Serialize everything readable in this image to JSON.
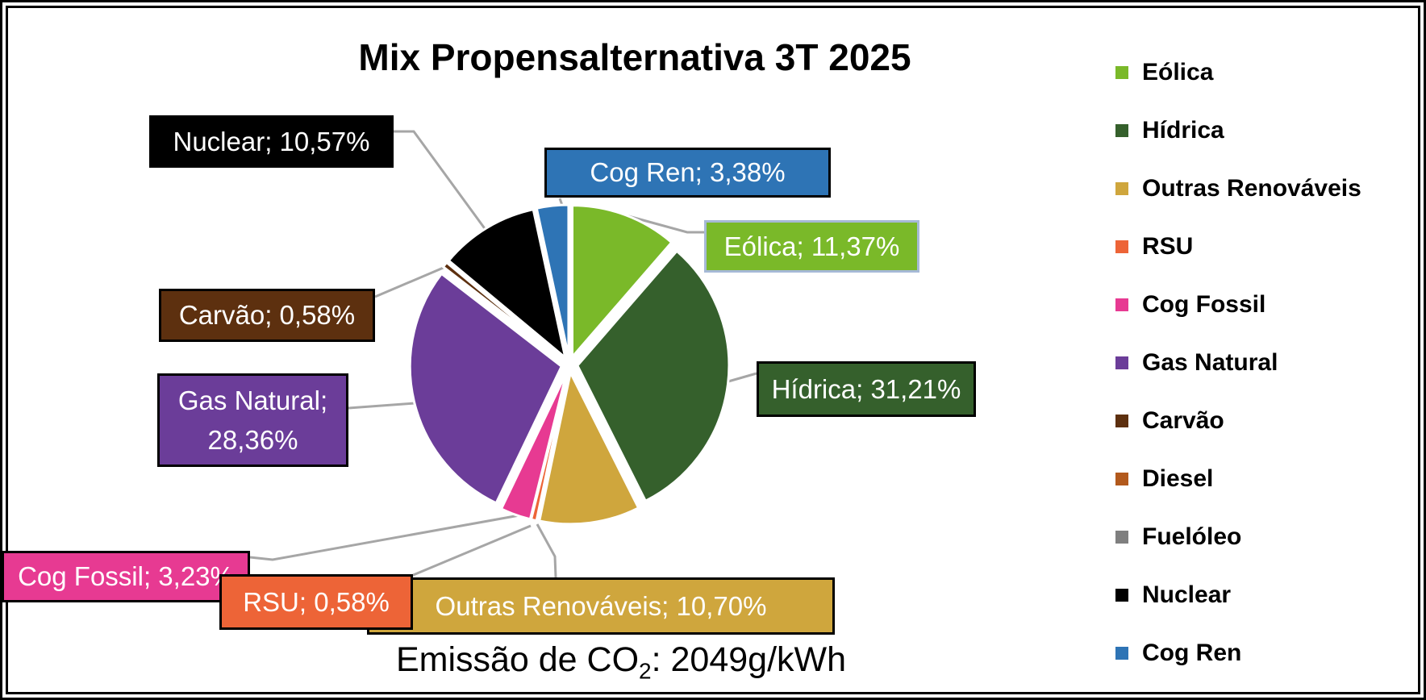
{
  "chart_data": {
    "type": "pie",
    "title": "Mix Propensalternativa 3T 2025",
    "legend_position": "right",
    "start_angle_deg": 0,
    "direction": "clockwise",
    "exploded": true,
    "value_unit": "%",
    "slices": [
      {
        "name": "Eólica",
        "value": 11.37,
        "callout_label": "Eólica; 11,37%",
        "color": "#7AB929"
      },
      {
        "name": "Hídrica",
        "value": 31.21,
        "callout_label": "Hídrica; 31,21%",
        "color": "#35602C"
      },
      {
        "name": "Outras Renováveis",
        "value": 10.7,
        "callout_label": "Outras Renováveis; 10,70%",
        "color": "#CFA63D"
      },
      {
        "name": "RSU",
        "value": 0.58,
        "callout_label": "RSU; 0,58%",
        "color": "#ED6437"
      },
      {
        "name": "Cog Fossil",
        "value": 3.23,
        "callout_label": "Cog Fossil; 3,23%",
        "color": "#E73A92"
      },
      {
        "name": "Gas Natural",
        "value": 28.36,
        "callout_label": "Gas Natural; 28,36%",
        "callout_lines": [
          "Gas Natural;",
          "28,36%"
        ],
        "color": "#6B3D99"
      },
      {
        "name": "Carvão",
        "value": 0.58,
        "callout_label": "Carvão; 0,58%",
        "color": "#5D300F"
      },
      {
        "name": "Diesel",
        "value": 0,
        "callout_label": null,
        "color": "#B2591C"
      },
      {
        "name": "Fuelóleo",
        "value": 0,
        "callout_label": null,
        "color": "#7F7F7F"
      },
      {
        "name": "Nuclear",
        "value": 10.57,
        "callout_label": "Nuclear; 10,57%",
        "color": "#000000"
      },
      {
        "name": "Cog Ren",
        "value": 3.38,
        "callout_label": "Cog Ren; 3,38%",
        "color": "#2E74B5"
      }
    ],
    "annotation": "Emissão de CO₂: 2049g/kWh"
  },
  "annotation": {
    "prefix": "Emissão de CO",
    "subscript": "2",
    "suffix": ": 2049g/kWh"
  },
  "colors": {
    "background": "#FFFFFF",
    "frame_border": "#000000",
    "title_text": "#000000",
    "legend_text": "#000000",
    "leader_line": "#A6A6A6",
    "callout_text": "#FFFFFF",
    "callout_border": "#000000",
    "eolica_callout_border": "#A6B9D6"
  }
}
